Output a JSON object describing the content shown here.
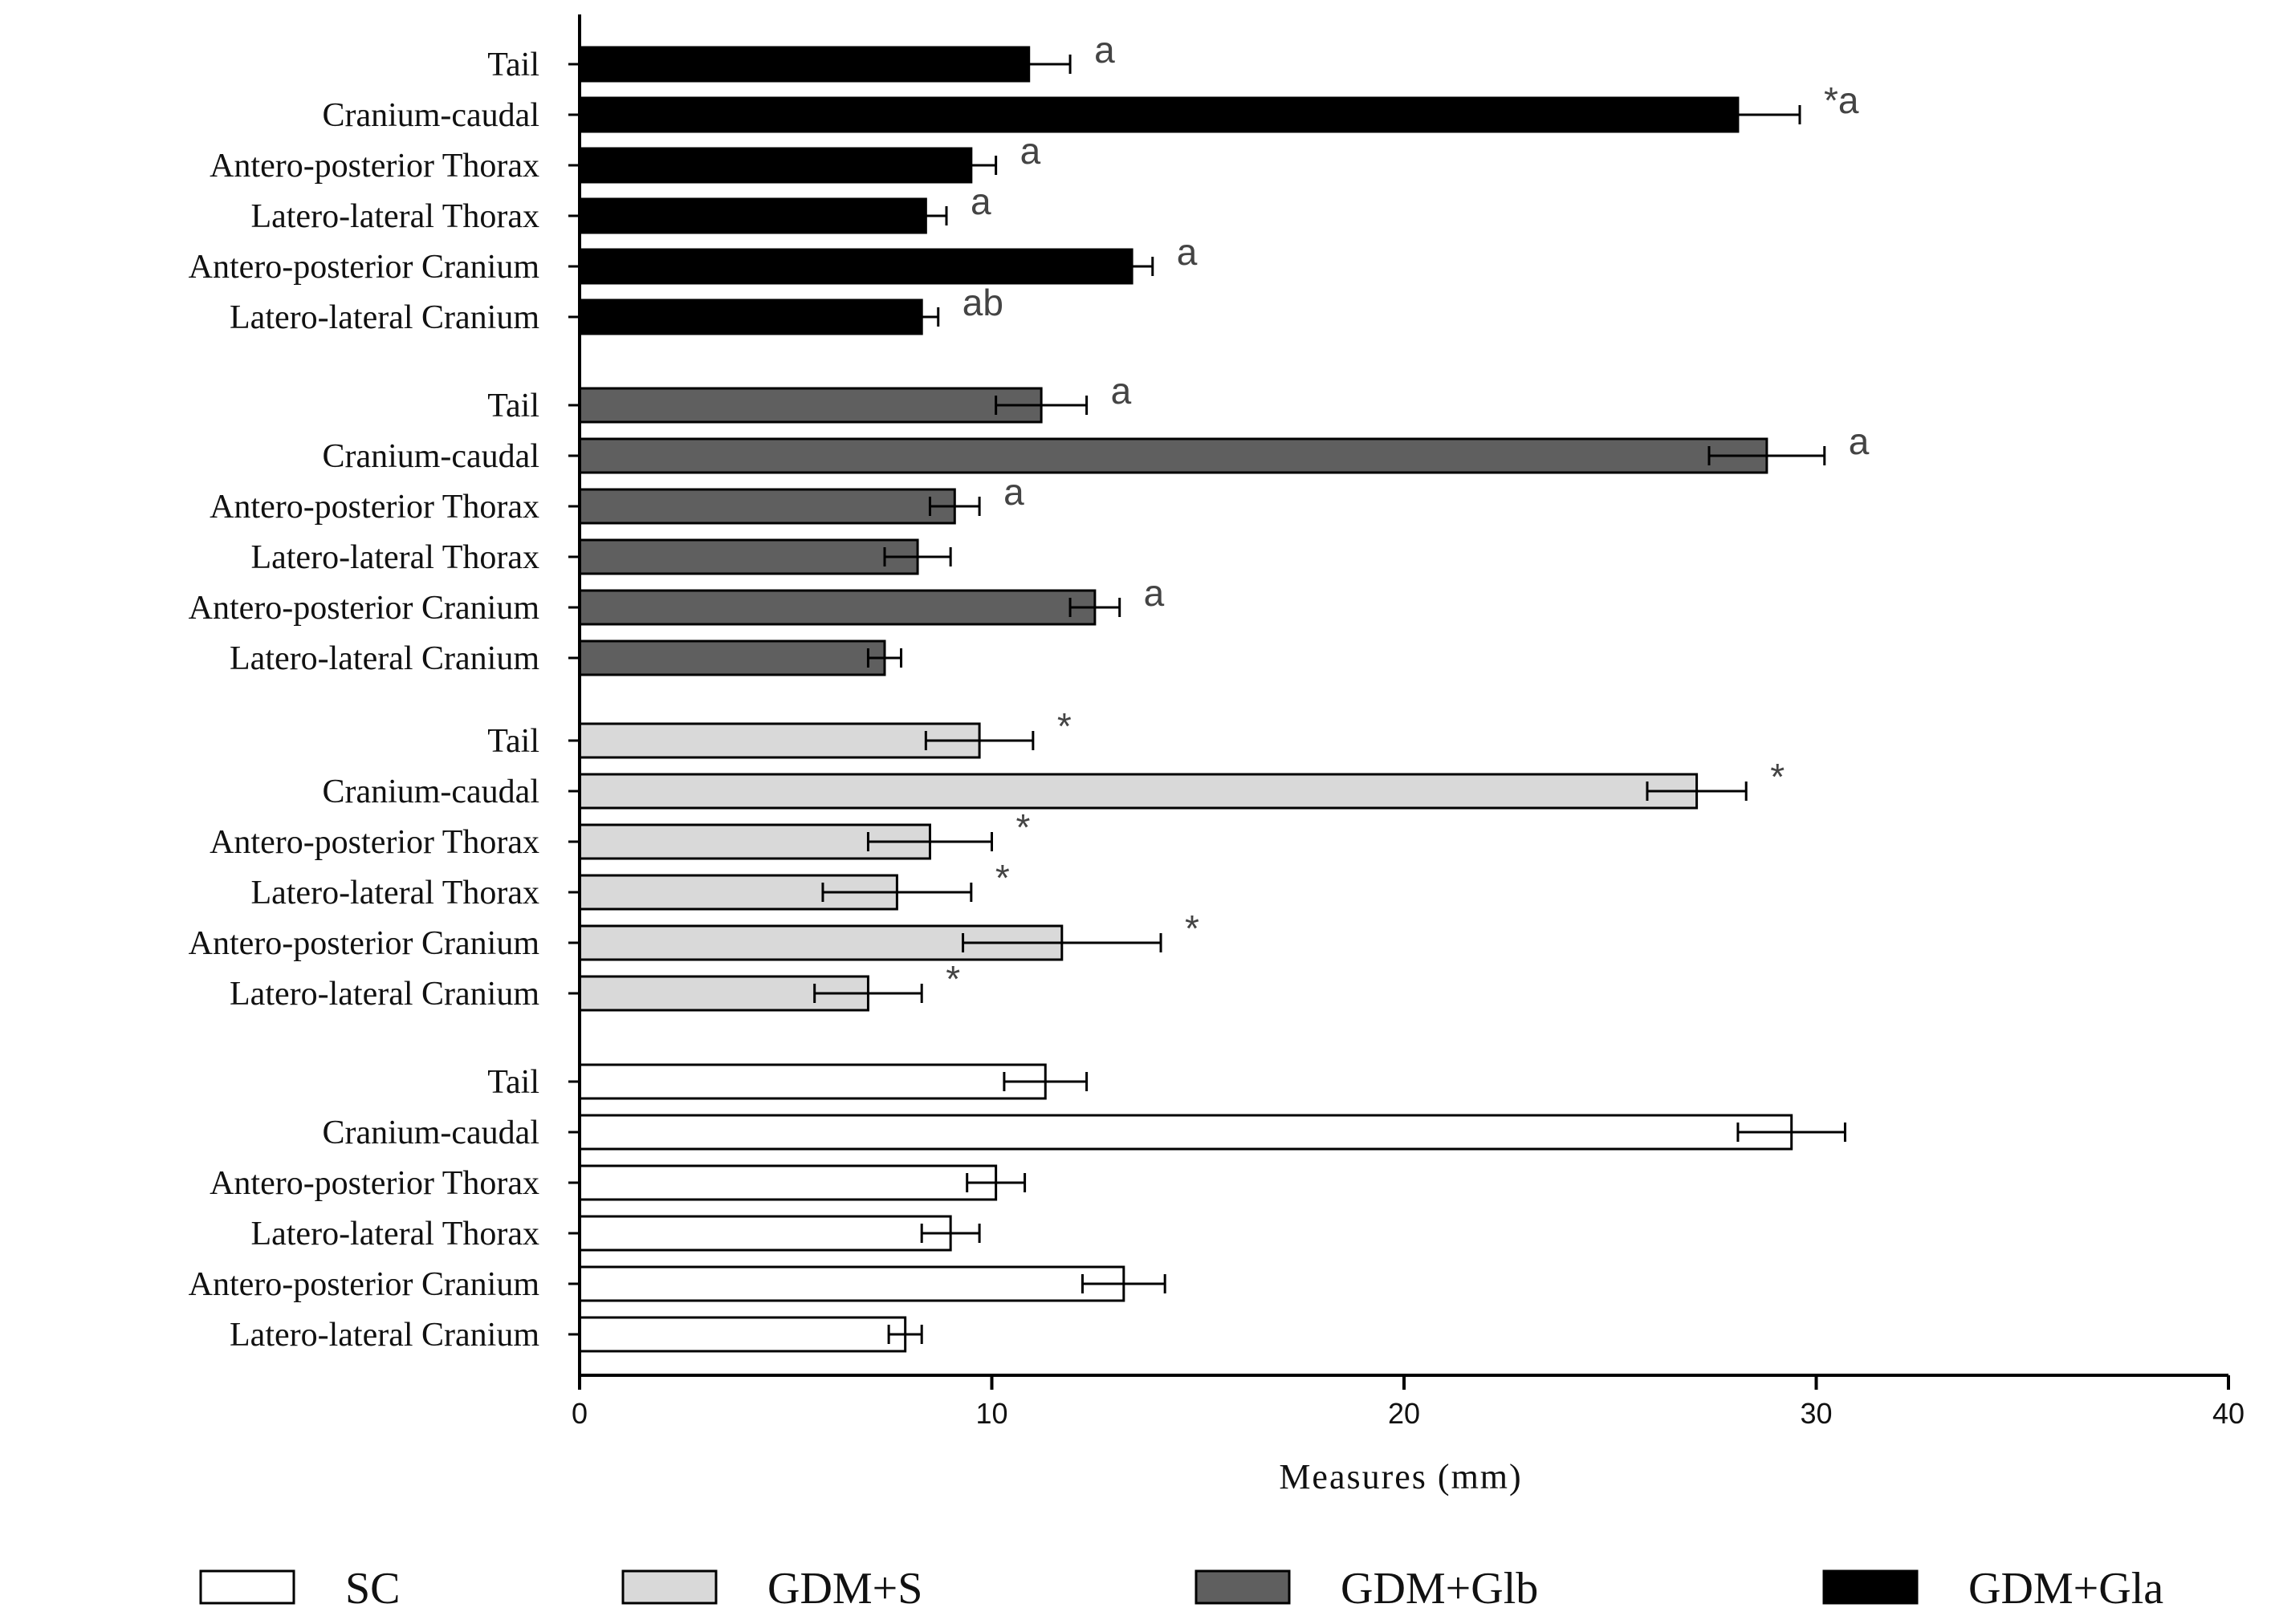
{
  "chart_data": {
    "type": "bar",
    "orientation": "horizontal",
    "title": "",
    "xlabel": "Measures (mm)",
    "ylabel": "",
    "xlim": [
      0,
      40
    ],
    "xticks": [
      0,
      10,
      20,
      30,
      40
    ],
    "grid": false,
    "legend_position": "bottom",
    "categories": [
      "Tail",
      "Cranium-caudal",
      "Antero-posterior Thorax",
      "Latero-lateral Thorax",
      "Antero-posterior Cranium",
      "Latero-lateral Cranium"
    ],
    "series": [
      {
        "name": "GDM+Gla",
        "color": "#000000",
        "values": [
          10.9,
          28.1,
          9.5,
          8.4,
          13.4,
          8.3
        ],
        "errors": [
          1.0,
          1.5,
          0.6,
          0.5,
          0.5,
          0.4
        ],
        "annotations": [
          "a",
          "*a",
          "a",
          "a",
          "a",
          "ab"
        ]
      },
      {
        "name": "GDM+Glb",
        "color": "#5f5f5f",
        "values": [
          11.2,
          28.8,
          9.1,
          8.2,
          12.5,
          7.4
        ],
        "errors": [
          1.1,
          1.4,
          0.6,
          0.8,
          0.6,
          0.4
        ],
        "annotations": [
          "a",
          "a",
          "a",
          "",
          "a",
          ""
        ]
      },
      {
        "name": "GDM+S",
        "color": "#d9d9d9",
        "values": [
          9.7,
          27.1,
          8.5,
          7.7,
          11.7,
          7.0
        ],
        "errors": [
          1.3,
          1.2,
          1.5,
          1.8,
          2.4,
          1.3
        ],
        "annotations": [
          "*",
          "*",
          "*",
          "*",
          "*",
          "*"
        ]
      },
      {
        "name": "SC",
        "color": "#ffffff",
        "values": [
          11.3,
          29.4,
          10.1,
          9.0,
          13.2,
          7.9
        ],
        "errors": [
          1.0,
          1.3,
          0.7,
          0.7,
          1.0,
          0.4
        ],
        "annotations": [
          "",
          "",
          "",
          "",
          "",
          ""
        ]
      }
    ],
    "legend": [
      "SC",
      "GDM+S",
      "GDM+Glb",
      "GDM+Gla"
    ]
  }
}
